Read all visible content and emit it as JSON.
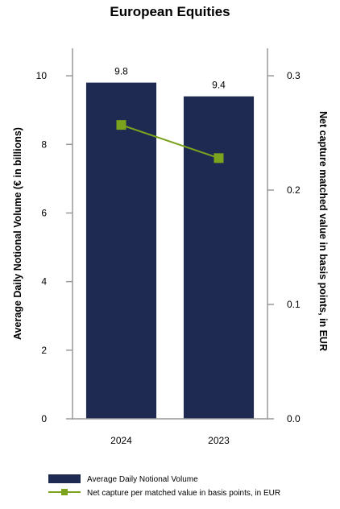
{
  "chart_data": {
    "type": "bar",
    "title": "European Equities",
    "categories": [
      "2024",
      "2023"
    ],
    "series": [
      {
        "name": "Average Daily Notional Volume",
        "type": "bar",
        "axis": "left",
        "values": [
          9.8,
          9.4
        ],
        "labels": [
          "9.8",
          "9.4"
        ],
        "color": "#1e2a52"
      },
      {
        "name": "Net capture per matched value in basis points, in EUR",
        "type": "line",
        "axis": "right",
        "values": [
          0.257,
          0.228
        ],
        "color": "#7ba31e"
      }
    ],
    "ylabel": "Average Daily Notional Volume (€ in billions)",
    "ylabel_right": "Net capture matched value in basis points, in EUR",
    "ylim": [
      0,
      10.8
    ],
    "ylim_right": [
      0,
      0.324
    ],
    "yticks": [
      "0",
      "2",
      "4",
      "6",
      "8",
      "10"
    ],
    "yticks_right": [
      "0.0",
      "0.1",
      "0.2",
      "0.3"
    ],
    "grid": false,
    "legend_position": "bottom"
  }
}
